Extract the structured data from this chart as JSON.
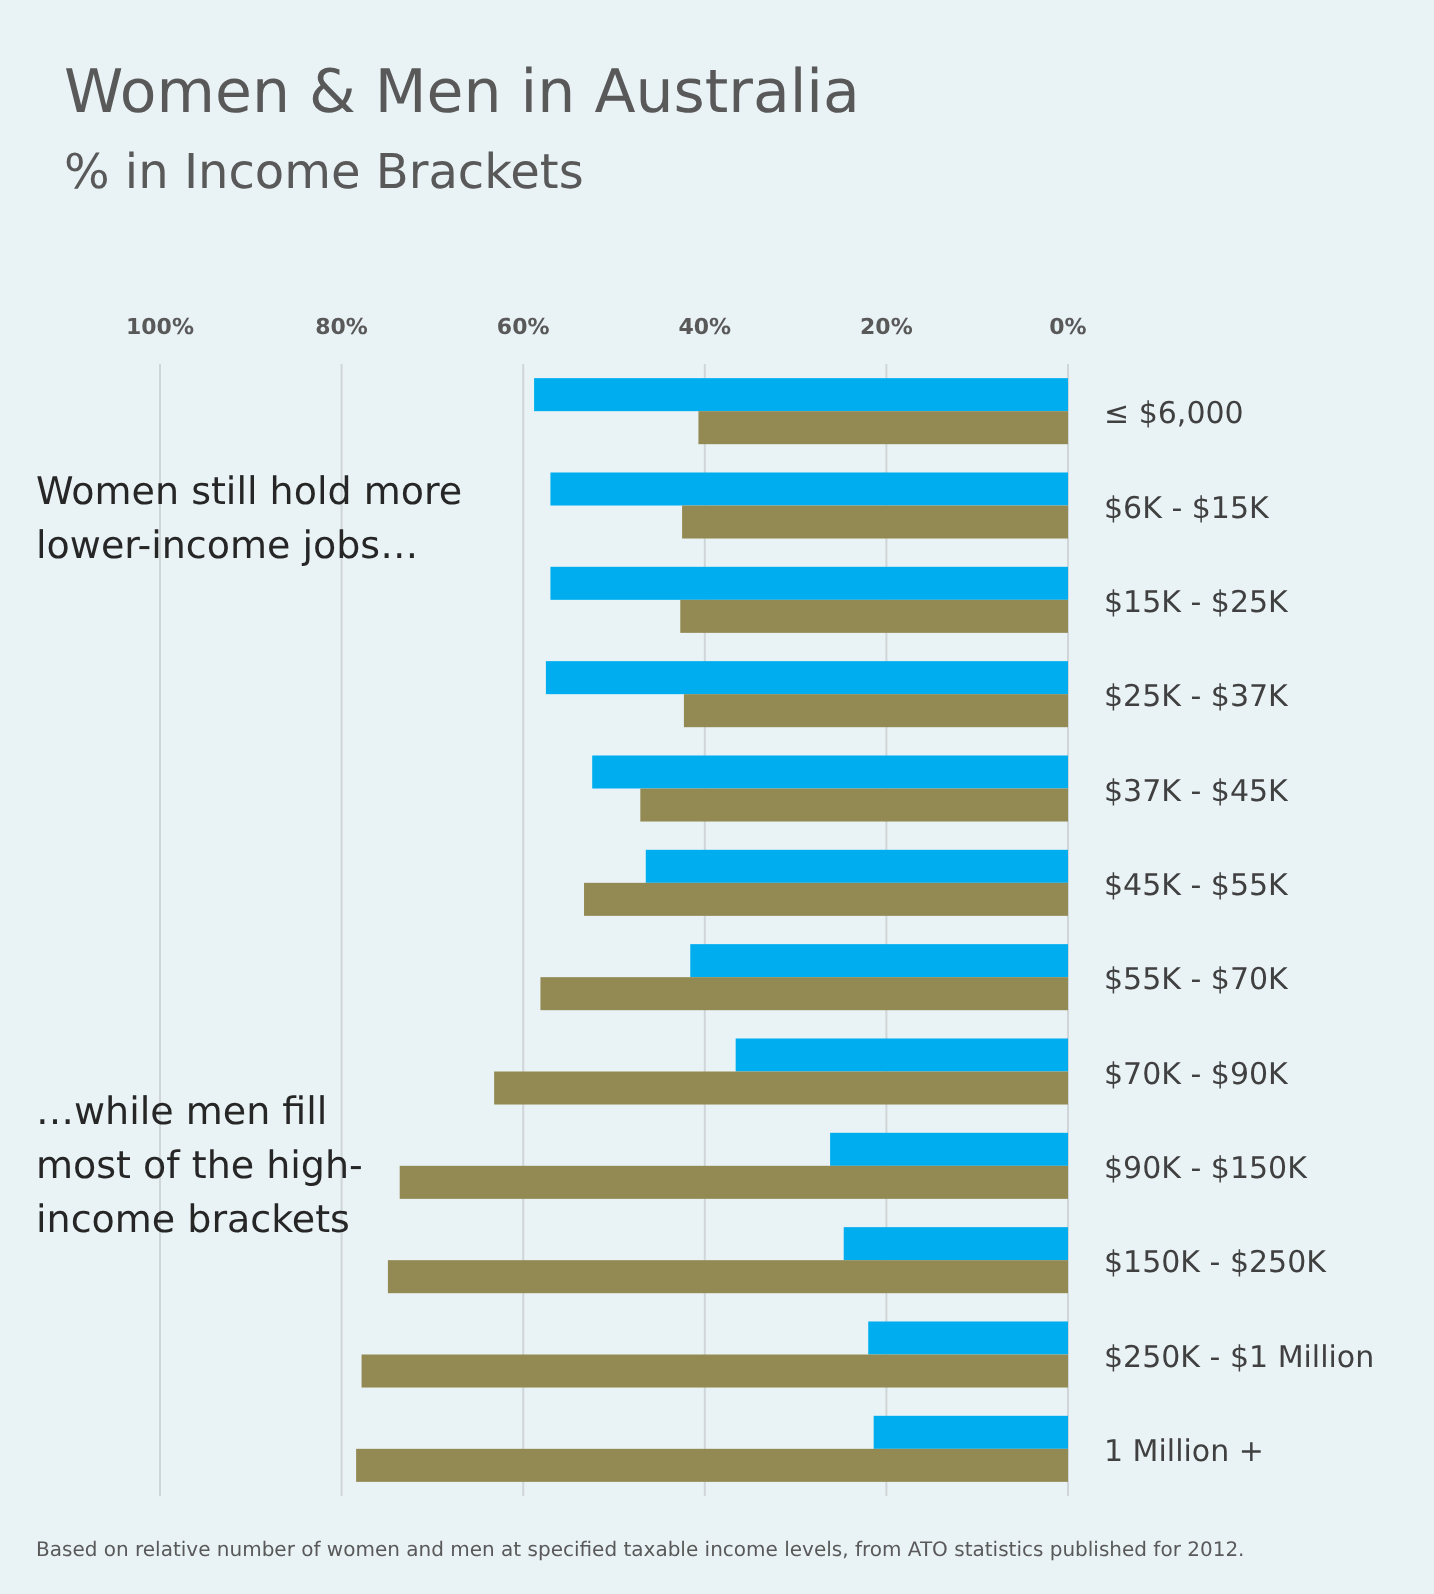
{
  "chart_data": {
    "type": "bar",
    "orientation": "horizontal",
    "title": "Women & Men in Australia",
    "subtitle": "% in Income Brackets",
    "categories": [
      "≤ $6,000",
      "$6K - $15K",
      "$15K - $25K",
      "$25K - $37K",
      "$37K - $45K",
      "$45K - $55K",
      "$55K - $70K",
      "$70K - $90K",
      "$90K - $150K",
      "$150K - $250K",
      "$250K - $1 Million",
      "1 Million +"
    ],
    "series": [
      {
        "color": "#00aeef",
        "values": [
          58.8,
          57.0,
          57.0,
          57.5,
          52.4,
          46.5,
          41.6,
          36.6,
          26.2,
          24.7,
          22.0,
          21.4
        ]
      },
      {
        "color": "#938953",
        "values": [
          40.7,
          42.5,
          42.7,
          42.3,
          47.1,
          53.3,
          58.1,
          63.2,
          73.6,
          74.9,
          77.8,
          78.4
        ]
      }
    ],
    "xlim": [
      100,
      0
    ],
    "xticks": [
      {
        "value": 100,
        "label": "100%"
      },
      {
        "value": 80,
        "label": "80%"
      },
      {
        "value": 60,
        "label": "60%"
      },
      {
        "value": 40,
        "label": "40%"
      },
      {
        "value": 20,
        "label": "20%"
      },
      {
        "value": 0,
        "label": "0%"
      }
    ],
    "grid": "x",
    "annotations": [
      "Women still hold more lower-income jobs…",
      "…while men fill most of the high-income brackets",
      "Based on relative number of women and men at specified taxable income levels, from ATO statistics published for 2012."
    ]
  }
}
